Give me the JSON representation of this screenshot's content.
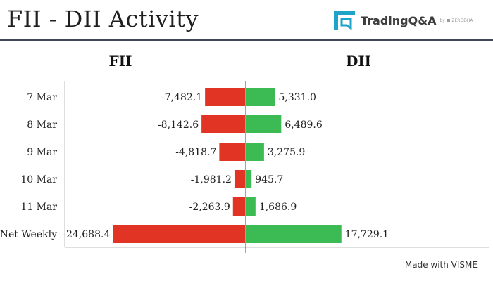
{
  "header": {
    "title": "FII - DII Activity",
    "logo_text": "TradingQ&A",
    "logo_byline": "by ■ ZERODHA"
  },
  "footer": {
    "credit": "Made with VISME"
  },
  "colors": {
    "negative": "#e23424",
    "positive": "#3cba54",
    "rule": "#3e4758",
    "logo_teal": "#1fa3c8"
  },
  "chart_data": {
    "type": "bar",
    "orientation": "horizontal-diverging",
    "categories": [
      "7 Mar",
      "8 Mar",
      "9 Mar",
      "10 Mar",
      "11 Mar",
      "Net Weekly"
    ],
    "series": [
      {
        "name": "FII",
        "values": [
          -7482.1,
          -8142.6,
          -4818.7,
          -1981.2,
          -2263.9,
          -24688.4
        ],
        "labels": [
          "-7,482.1",
          "-8,142.6",
          "-4,818.7",
          "-1,981.2",
          "-2,263.9",
          "-24,688.4"
        ]
      },
      {
        "name": "DII",
        "values": [
          5331.0,
          6489.6,
          3275.9,
          945.7,
          1686.9,
          17729.1
        ],
        "labels": [
          "5,331.0",
          "6,489.6",
          "3,275.9",
          "945.7",
          "1,686.9",
          "17,729.1"
        ]
      }
    ],
    "grid": false
  }
}
